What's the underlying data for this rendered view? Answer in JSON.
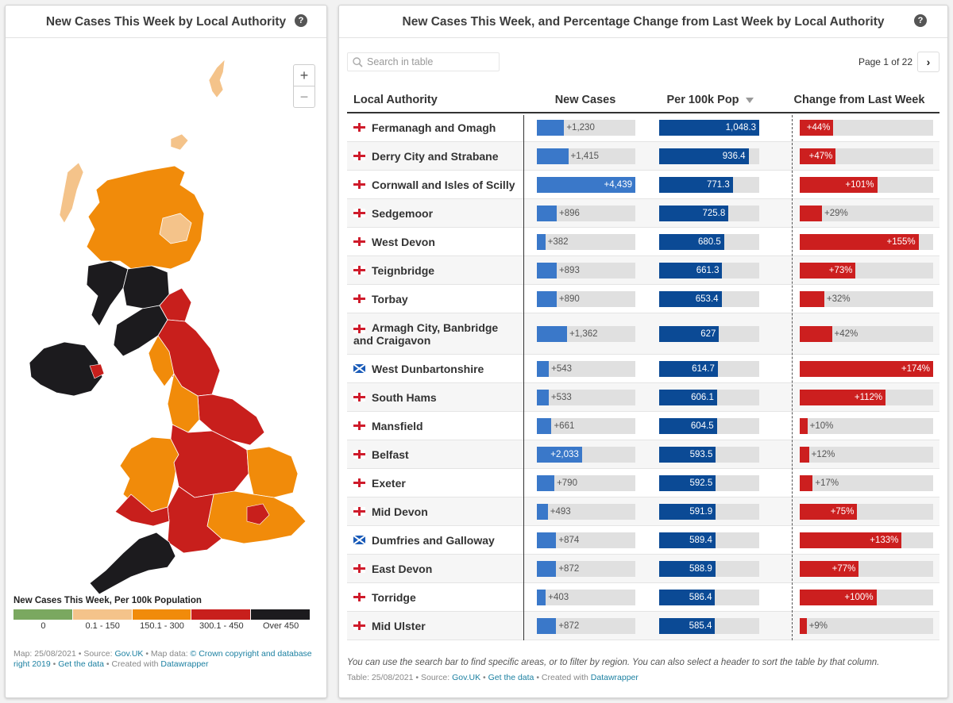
{
  "map_panel": {
    "title": "New Cases This Week by Local Authority",
    "help_label": "?",
    "zoom_in_label": "+",
    "zoom_out_label": "−",
    "legend": {
      "title": "New Cases This Week, Per 100k Population",
      "items": [
        {
          "label": "0",
          "color": "#7aa860"
        },
        {
          "label": "0.1 - 150",
          "color": "#f4c38a"
        },
        {
          "label": "150.1 - 300",
          "color": "#f18b0a"
        },
        {
          "label": "300.1 - 450",
          "color": "#c81f1c"
        },
        {
          "label": "Over 450",
          "color": "#1c1b1e"
        }
      ]
    },
    "footer": {
      "prefix": "Map: 25/08/2021 • Source: ",
      "source_link": "Gov.UK",
      "mid": " • Map data: ",
      "copyright_link": "© Crown copyright and database right 2019",
      "sep": " • ",
      "data_link": "Get the data",
      "created": " • Created with ",
      "dw_link": "Datawrapper"
    }
  },
  "table_panel": {
    "title": "New Cases This Week, and Percentage Change from Last Week by Local Authority",
    "help_label": "?",
    "search": {
      "placeholder": "Search in table"
    },
    "page_info": "Page 1 of 22",
    "next_label": "›",
    "columns": {
      "local_authority": "Local Authority",
      "new_cases": "New Cases",
      "per_100k": "Per 100k Pop",
      "change": "Change from Last Week"
    },
    "rows": [
      {
        "name": "Fermanagh and Omagh",
        "flag": "ni",
        "new_cases": 1230,
        "new_cases_label": "+1,230",
        "per_100k": 1048.3,
        "per_100k_label": "1,048.3",
        "change": 44,
        "change_label": "+44%"
      },
      {
        "name": "Derry City and Strabane",
        "flag": "ni",
        "new_cases": 1415,
        "new_cases_label": "+1,415",
        "per_100k": 936.4,
        "per_100k_label": "936.4",
        "change": 47,
        "change_label": "+47%"
      },
      {
        "name": "Cornwall and Isles of Scilly",
        "flag": "en",
        "new_cases": 4439,
        "new_cases_label": "+4,439",
        "per_100k": 771.3,
        "per_100k_label": "771.3",
        "change": 101,
        "change_label": "+101%"
      },
      {
        "name": "Sedgemoor",
        "flag": "en",
        "new_cases": 896,
        "new_cases_label": "+896",
        "per_100k": 725.8,
        "per_100k_label": "725.8",
        "change": 29,
        "change_label": "+29%"
      },
      {
        "name": "West Devon",
        "flag": "en",
        "new_cases": 382,
        "new_cases_label": "+382",
        "per_100k": 680.5,
        "per_100k_label": "680.5",
        "change": 155,
        "change_label": "+155%"
      },
      {
        "name": "Teignbridge",
        "flag": "en",
        "new_cases": 893,
        "new_cases_label": "+893",
        "per_100k": 661.3,
        "per_100k_label": "661.3",
        "change": 73,
        "change_label": "+73%"
      },
      {
        "name": "Torbay",
        "flag": "en",
        "new_cases": 890,
        "new_cases_label": "+890",
        "per_100k": 653.4,
        "per_100k_label": "653.4",
        "change": 32,
        "change_label": "+32%"
      },
      {
        "name": "Armagh City, Banbridge and Craigavon",
        "flag": "ni",
        "new_cases": 1362,
        "new_cases_label": "+1,362",
        "per_100k": 627,
        "per_100k_label": "627",
        "change": 42,
        "change_label": "+42%",
        "tall": true
      },
      {
        "name": "West Dunbartonshire",
        "flag": "sc",
        "new_cases": 543,
        "new_cases_label": "+543",
        "per_100k": 614.7,
        "per_100k_label": "614.7",
        "change": 174,
        "change_label": "+174%"
      },
      {
        "name": "South Hams",
        "flag": "en",
        "new_cases": 533,
        "new_cases_label": "+533",
        "per_100k": 606.1,
        "per_100k_label": "606.1",
        "change": 112,
        "change_label": "+112%"
      },
      {
        "name": "Mansfield",
        "flag": "en",
        "new_cases": 661,
        "new_cases_label": "+661",
        "per_100k": 604.5,
        "per_100k_label": "604.5",
        "change": 10,
        "change_label": "+10%"
      },
      {
        "name": "Belfast",
        "flag": "ni",
        "new_cases": 2033,
        "new_cases_label": "+2,033",
        "per_100k": 593.5,
        "per_100k_label": "593.5",
        "change": 12,
        "change_label": "+12%"
      },
      {
        "name": "Exeter",
        "flag": "en",
        "new_cases": 790,
        "new_cases_label": "+790",
        "per_100k": 592.5,
        "per_100k_label": "592.5",
        "change": 17,
        "change_label": "+17%"
      },
      {
        "name": "Mid Devon",
        "flag": "en",
        "new_cases": 493,
        "new_cases_label": "+493",
        "per_100k": 591.9,
        "per_100k_label": "591.9",
        "change": 75,
        "change_label": "+75%"
      },
      {
        "name": "Dumfries and Galloway",
        "flag": "sc",
        "new_cases": 874,
        "new_cases_label": "+874",
        "per_100k": 589.4,
        "per_100k_label": "589.4",
        "change": 133,
        "change_label": "+133%"
      },
      {
        "name": "East Devon",
        "flag": "en",
        "new_cases": 872,
        "new_cases_label": "+872",
        "per_100k": 588.9,
        "per_100k_label": "588.9",
        "change": 77,
        "change_label": "+77%"
      },
      {
        "name": "Torridge",
        "flag": "en",
        "new_cases": 403,
        "new_cases_label": "+403",
        "per_100k": 586.4,
        "per_100k_label": "586.4",
        "change": 100,
        "change_label": "+100%"
      },
      {
        "name": "Mid Ulster",
        "flag": "ni",
        "new_cases": 872,
        "new_cases_label": "+872",
        "per_100k": 585.4,
        "per_100k_label": "585.4",
        "change": 9,
        "change_label": "+9%"
      }
    ],
    "scales": {
      "new_cases_max": 4439,
      "per_100k_max": 1048.3,
      "change_max": 174
    },
    "note": "You can use the search bar to find specific areas, or to filter by region. You can also select a header to sort the table by that column.",
    "footer": {
      "prefix": "Table: 25/08/2021 • Source: ",
      "source_link": "Gov.UK",
      "sep": " • ",
      "data_link": "Get the data",
      "created": " • Created with ",
      "dw_link": "Datawrapper"
    }
  }
}
